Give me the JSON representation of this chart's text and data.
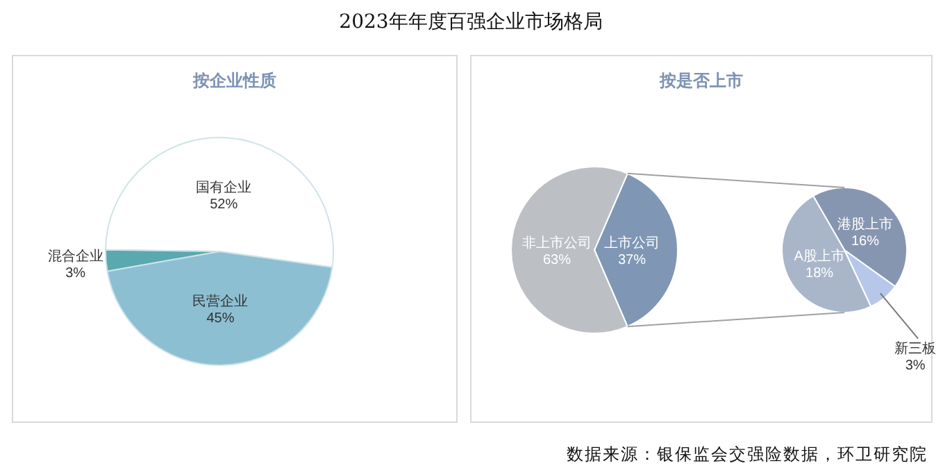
{
  "chart_data": [
    {
      "type": "pie",
      "title": "2023年年度百强企业市场格局",
      "subtitle": "按企业性质",
      "categories": [
        "国有企业",
        "民营企业",
        "混合企业"
      ],
      "values": [
        52,
        45,
        3
      ],
      "colors": [
        "#ffffff",
        "#8dbfd3",
        "#5aa8b0"
      ],
      "value_labels": [
        "52%",
        "45%",
        "3%"
      ]
    },
    {
      "type": "pie",
      "subtitle": "按是否上市",
      "categories": [
        "上市公司",
        "非上市公司"
      ],
      "values": [
        37,
        63
      ],
      "colors": [
        "#7f97b4",
        "#bcc0c5"
      ],
      "value_labels": [
        "37%",
        "63%"
      ]
    },
    {
      "type": "pie",
      "categories": [
        "港股上市",
        "新三板",
        "A股上市"
      ],
      "values": [
        16,
        3,
        18
      ],
      "colors": [
        "#8796b0",
        "#b7c7e9",
        "#a9b6ca"
      ],
      "value_labels": [
        "16%",
        "3%",
        "18%"
      ],
      "annotations": [
        "数据来源：银保监会交强险数据，环卫研究院"
      ]
    }
  ]
}
